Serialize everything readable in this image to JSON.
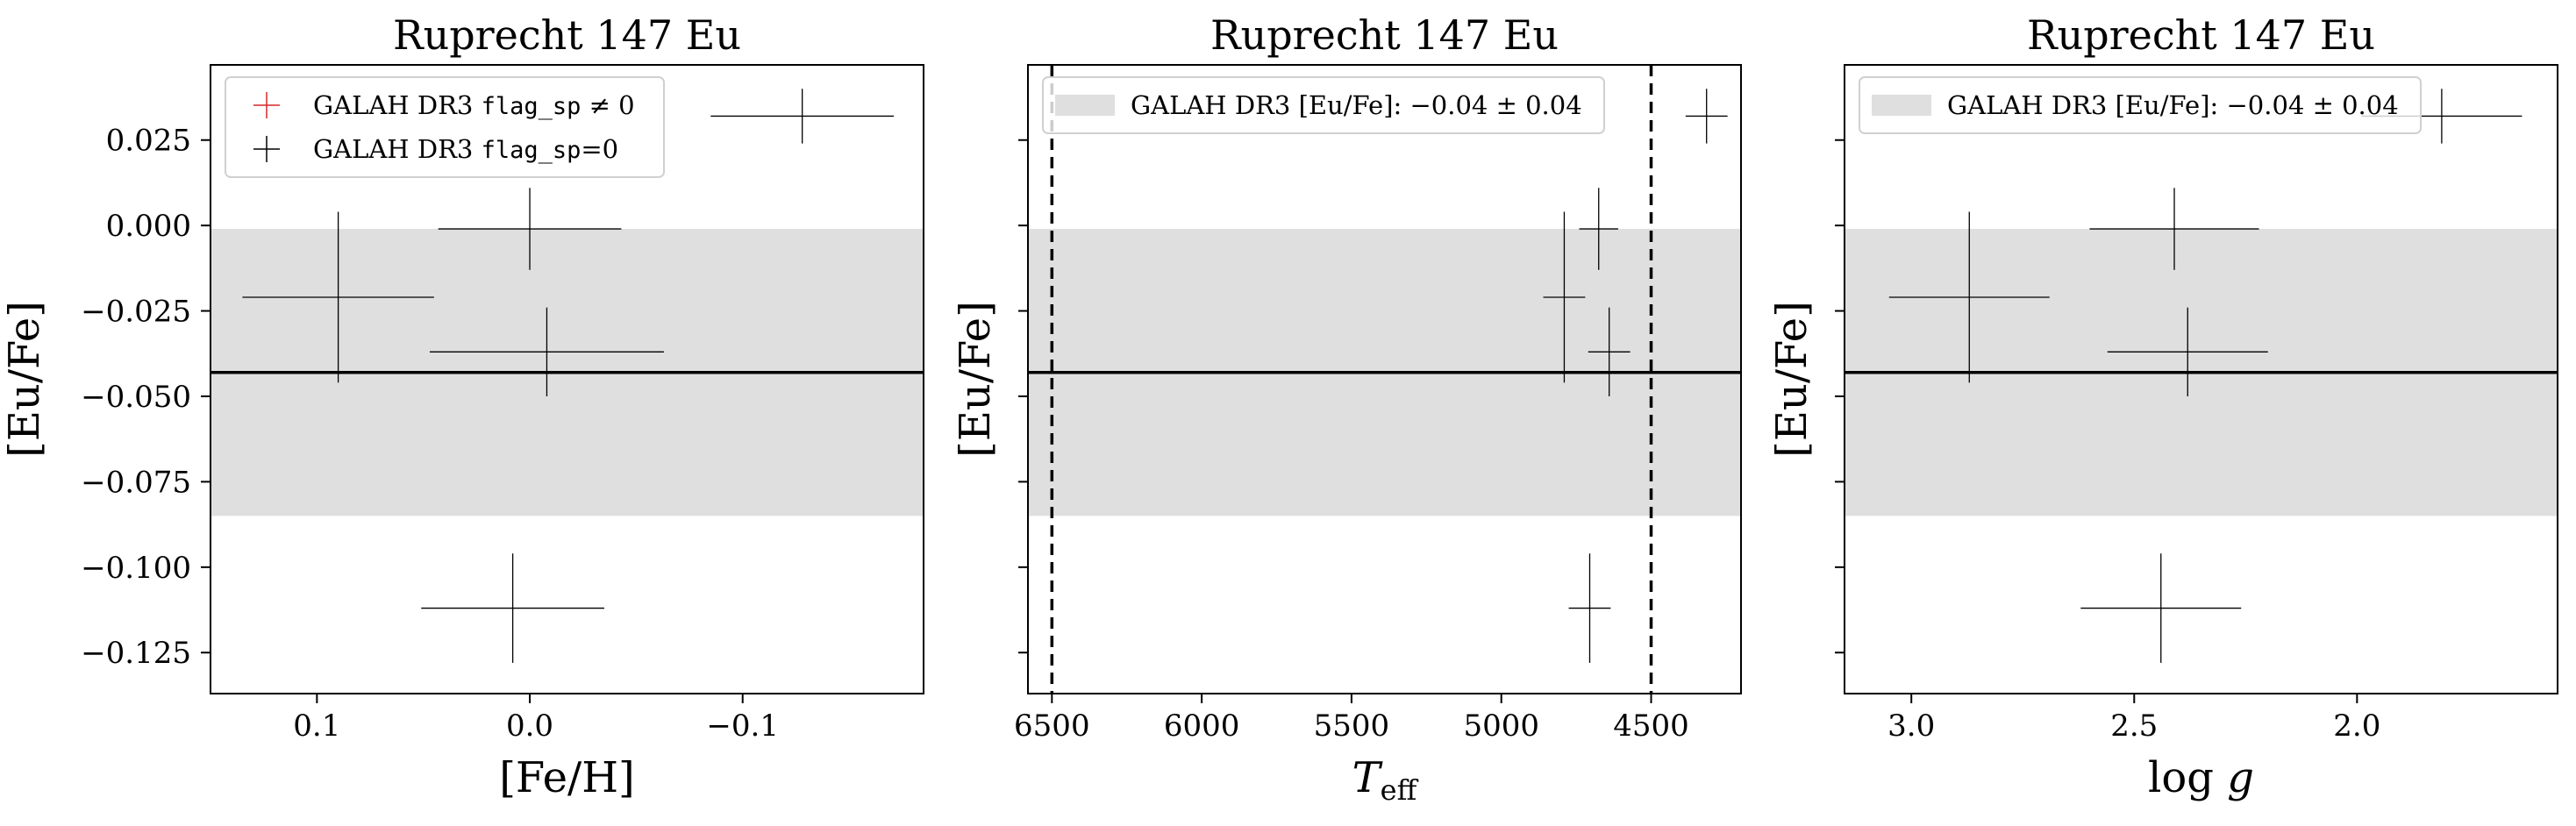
{
  "figure": {
    "background": "#ffffff",
    "band_color": "#dfdfdf",
    "mean_line_color": "#000000",
    "marker_color_flag_nonzero": "#d62728",
    "marker_color_flag_zero": "#000000"
  },
  "chart_data": [
    {
      "type": "scatter",
      "title": "Ruprecht 147 Eu",
      "xlabel": "[Fe/H]",
      "ylabel": "[Eu/Fe]",
      "xlim": [
        0.15,
        -0.185
      ],
      "ylim": [
        -0.137,
        0.047
      ],
      "x_inverted": true,
      "xticks": [
        0.1,
        0.0,
        -0.1
      ],
      "xtick_labels": [
        "0.1",
        "0.0",
        "−0.1"
      ],
      "yticks": [
        0.025,
        0.0,
        -0.025,
        -0.05,
        -0.075,
        -0.1,
        -0.125
      ],
      "ytick_labels": [
        "0.025",
        "0.000",
        "−0.025",
        "−0.050",
        "−0.075",
        "−0.100",
        "−0.125"
      ],
      "show_ytick_labels": true,
      "band": {
        "mean": -0.043,
        "low": -0.085,
        "high": -0.001
      },
      "vlines": [],
      "legend": {
        "placement": "upper left",
        "entries": [
          {
            "kind": "plus",
            "color": "#d62728",
            "text_before": "GALAH DR3 ",
            "code": "flag_sp",
            "text_after": " ≠ 0"
          },
          {
            "kind": "plus",
            "color": "#000000",
            "text_before": "GALAH DR3 ",
            "code": "flag_sp",
            "text_after": "=0"
          }
        ]
      },
      "points": [
        {
          "x": 0.09,
          "y": -0.021,
          "xerr": 0.045,
          "yerr": 0.025
        },
        {
          "x": 0.0,
          "y": -0.001,
          "xerr": 0.043,
          "yerr": 0.012
        },
        {
          "x": -0.008,
          "y": -0.037,
          "xerr": 0.055,
          "yerr": 0.013
        },
        {
          "x": 0.008,
          "y": -0.112,
          "xerr": 0.043,
          "yerr": 0.016
        },
        {
          "x": -0.128,
          "y": 0.032,
          "xerr": 0.043,
          "yerr": 0.008
        }
      ]
    },
    {
      "type": "scatter",
      "title": "Ruprecht 147 Eu",
      "xlabel": "T_eff",
      "ylabel": "[Eu/Fe]",
      "xlim": [
        6580,
        4200
      ],
      "ylim": [
        -0.137,
        0.047
      ],
      "x_inverted": true,
      "xticks": [
        6500,
        6000,
        5500,
        5000,
        4500
      ],
      "xtick_labels": [
        "6500",
        "6000",
        "5500",
        "5000",
        "4500"
      ],
      "yticks": [
        0.025,
        0.0,
        -0.025,
        -0.05,
        -0.075,
        -0.1,
        -0.125
      ],
      "ytick_labels": [],
      "show_ytick_labels": false,
      "band": {
        "mean": -0.043,
        "low": -0.085,
        "high": -0.001
      },
      "vlines": [
        6500,
        4500
      ],
      "legend": {
        "placement": "upper left",
        "entries": [
          {
            "kind": "patch",
            "color": "#dfdfdf",
            "text": "GALAH DR3 [Eu/Fe]: −0.04 ± 0.04"
          }
        ]
      },
      "points": [
        {
          "x": 4790,
          "y": -0.021,
          "xerr": 70,
          "yerr": 0.025
        },
        {
          "x": 4675,
          "y": -0.001,
          "xerr": 65,
          "yerr": 0.012
        },
        {
          "x": 4640,
          "y": -0.037,
          "xerr": 70,
          "yerr": 0.013
        },
        {
          "x": 4705,
          "y": -0.112,
          "xerr": 70,
          "yerr": 0.016
        },
        {
          "x": 4315,
          "y": 0.032,
          "xerr": 70,
          "yerr": 0.008
        }
      ]
    },
    {
      "type": "scatter",
      "title": "Ruprecht 147 Eu",
      "xlabel": "log g",
      "ylabel": "[Eu/Fe]",
      "xlim": [
        3.15,
        1.55
      ],
      "ylim": [
        -0.137,
        0.047
      ],
      "x_inverted": true,
      "xticks": [
        3.0,
        2.5,
        2.0
      ],
      "xtick_labels": [
        "3.0",
        "2.5",
        "2.0"
      ],
      "yticks": [
        0.025,
        0.0,
        -0.025,
        -0.05,
        -0.075,
        -0.1,
        -0.125
      ],
      "ytick_labels": [],
      "show_ytick_labels": false,
      "band": {
        "mean": -0.043,
        "low": -0.085,
        "high": -0.001
      },
      "vlines": [],
      "legend": {
        "placement": "upper left",
        "entries": [
          {
            "kind": "patch",
            "color": "#dfdfdf",
            "text": "GALAH DR3 [Eu/Fe]: −0.04 ± 0.04"
          }
        ]
      },
      "points": [
        {
          "x": 2.87,
          "y": -0.021,
          "xerr": 0.18,
          "yerr": 0.025
        },
        {
          "x": 2.41,
          "y": -0.001,
          "xerr": 0.19,
          "yerr": 0.012
        },
        {
          "x": 2.38,
          "y": -0.037,
          "xerr": 0.18,
          "yerr": 0.013
        },
        {
          "x": 2.44,
          "y": -0.112,
          "xerr": 0.18,
          "yerr": 0.016
        },
        {
          "x": 1.81,
          "y": 0.032,
          "xerr": 0.18,
          "yerr": 0.008
        }
      ]
    }
  ]
}
